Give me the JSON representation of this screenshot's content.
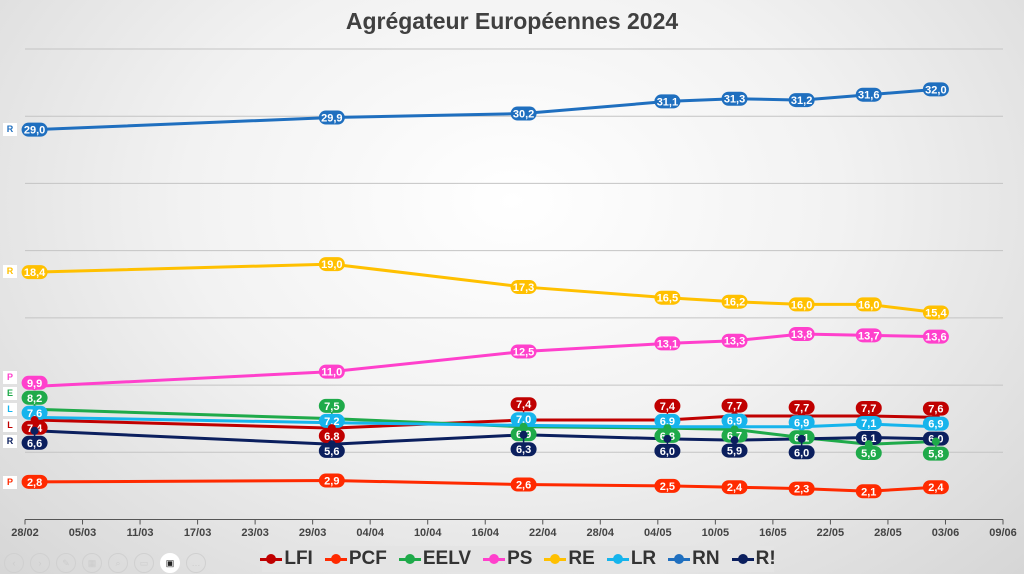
{
  "chart_data": {
    "type": "line",
    "title": "Agrégateur Européennes 2024",
    "xlabel": "",
    "ylabel": "",
    "year": 2024,
    "x_ticks": [
      "28/02",
      "05/03",
      "11/03",
      "17/03",
      "23/03",
      "29/03",
      "04/04",
      "10/04",
      "16/04",
      "22/04",
      "28/04",
      "04/05",
      "10/05",
      "16/05",
      "22/05",
      "28/05",
      "03/06",
      "09/06"
    ],
    "x": [
      "29/02",
      "31/03",
      "20/04",
      "05/05",
      "12/05",
      "19/05",
      "26/05",
      "02/06"
    ],
    "ylim": [
      0,
      35
    ],
    "grid": true,
    "legend_position": "bottom",
    "series": [
      {
        "name": "LFI",
        "color": "#c00000",
        "values": [
          7.4,
          6.8,
          7.4,
          7.4,
          7.7,
          7.7,
          7.7,
          7.6
        ]
      },
      {
        "name": "PCF",
        "color": "#ff2a00",
        "values": [
          2.8,
          2.9,
          2.6,
          2.5,
          2.4,
          2.3,
          2.1,
          2.4
        ]
      },
      {
        "name": "EELV",
        "color": "#1faa4a",
        "values": [
          8.2,
          7.5,
          6.9,
          6.8,
          6.7,
          6.1,
          5.6,
          5.8
        ]
      },
      {
        "name": "PS",
        "color": "#ff40cc",
        "values": [
          9.9,
          11.0,
          12.5,
          13.1,
          13.3,
          13.8,
          13.7,
          13.6
        ]
      },
      {
        "name": "RE",
        "color": "#ffc000",
        "values": [
          18.4,
          19.0,
          17.3,
          16.5,
          16.2,
          16.0,
          16.0,
          15.4
        ]
      },
      {
        "name": "LR",
        "color": "#16b4ec",
        "values": [
          7.6,
          7.2,
          7.0,
          6.9,
          6.9,
          6.9,
          7.1,
          6.9
        ]
      },
      {
        "name": "RN",
        "color": "#1f6fbf",
        "values": [
          29.0,
          29.9,
          30.2,
          31.1,
          31.3,
          31.2,
          31.6,
          32.0
        ]
      },
      {
        "name": "R!",
        "color": "#0b1f5e",
        "values": [
          6.6,
          5.6,
          6.3,
          6.0,
          5.9,
          6.0,
          6.1,
          6.0
        ]
      }
    ]
  },
  "party_logos": [
    "RN",
    "RE",
    "PS",
    "EELV",
    "LR",
    "LFI",
    "R!",
    "PCF"
  ],
  "toolbar_icons": [
    "prev-icon",
    "next-icon",
    "pen-icon",
    "slides-icon",
    "zoom-icon",
    "subtitle-icon",
    "camera-icon",
    "more-icon"
  ]
}
